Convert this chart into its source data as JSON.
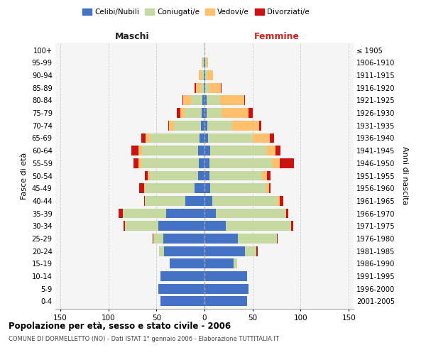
{
  "age_groups": [
    "0-4",
    "5-9",
    "10-14",
    "15-19",
    "20-24",
    "25-29",
    "30-34",
    "35-39",
    "40-44",
    "45-49",
    "50-54",
    "55-59",
    "60-64",
    "65-69",
    "70-74",
    "75-79",
    "80-84",
    "85-89",
    "90-94",
    "95-99",
    "100+"
  ],
  "birth_years": [
    "2001-2005",
    "1996-2000",
    "1991-1995",
    "1986-1990",
    "1981-1985",
    "1976-1980",
    "1971-1975",
    "1966-1970",
    "1961-1965",
    "1956-1960",
    "1951-1955",
    "1946-1950",
    "1941-1945",
    "1936-1940",
    "1931-1935",
    "1926-1930",
    "1921-1925",
    "1916-1920",
    "1911-1915",
    "1906-1910",
    "≤ 1905"
  ],
  "males": {
    "celibi": [
      46,
      48,
      46,
      36,
      42,
      43,
      48,
      40,
      20,
      10,
      7,
      6,
      7,
      5,
      4,
      3,
      2,
      1,
      1,
      1,
      0
    ],
    "coniugati": [
      0,
      0,
      0,
      0,
      5,
      10,
      35,
      45,
      42,
      52,
      50,
      60,
      58,
      52,
      28,
      18,
      12,
      3,
      2,
      1,
      0
    ],
    "vedovi": [
      0,
      0,
      0,
      0,
      0,
      0,
      0,
      0,
      0,
      1,
      2,
      3,
      4,
      4,
      5,
      4,
      8,
      5,
      3,
      1,
      0
    ],
    "divorziati": [
      0,
      0,
      0,
      0,
      0,
      1,
      1,
      4,
      1,
      5,
      3,
      5,
      7,
      5,
      1,
      4,
      1,
      1,
      0,
      0,
      0
    ]
  },
  "females": {
    "nubili": [
      44,
      46,
      44,
      30,
      42,
      35,
      22,
      12,
      8,
      6,
      5,
      5,
      6,
      4,
      3,
      2,
      2,
      1,
      1,
      1,
      0
    ],
    "coniugate": [
      0,
      0,
      0,
      4,
      12,
      40,
      68,
      72,
      68,
      58,
      55,
      65,
      58,
      46,
      26,
      16,
      14,
      4,
      2,
      1,
      0
    ],
    "vedove": [
      0,
      0,
      0,
      0,
      0,
      0,
      0,
      1,
      2,
      3,
      5,
      8,
      10,
      18,
      28,
      28,
      25,
      12,
      6,
      2,
      1
    ],
    "divorziate": [
      0,
      0,
      0,
      0,
      1,
      1,
      2,
      2,
      4,
      2,
      4,
      15,
      5,
      4,
      2,
      4,
      1,
      1,
      0,
      0,
      0
    ]
  },
  "colors": {
    "celibi": "#4472c4",
    "coniugati": "#c5d9a0",
    "vedovi": "#ffc06e",
    "divorziati": "#cc1111"
  },
  "xlim": 155,
  "title": "Popolazione per età, sesso e stato civile - 2006",
  "subtitle": "COMUNE DI DORMELLETTO (NO) - Dati ISTAT 1° gennaio 2006 - Elaborazione TUTTITALIA.IT",
  "ylabel_left": "Fasce di età",
  "ylabel_right": "Anni di nascita",
  "xlabel_maschi": "Maschi",
  "xlabel_femmine": "Femmine",
  "bg_color": "#f5f5f5"
}
